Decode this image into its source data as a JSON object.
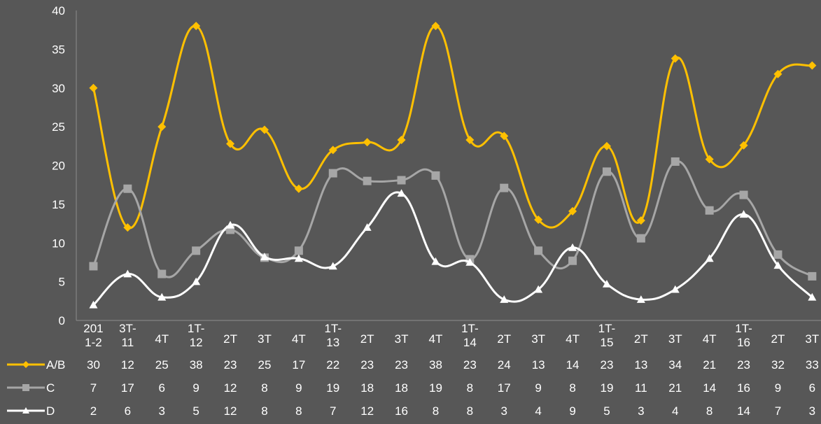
{
  "chart_data": {
    "type": "line",
    "title": "",
    "xlabel": "",
    "ylabel": "",
    "ylim": [
      0,
      40
    ],
    "yticks": [
      0,
      5,
      10,
      15,
      20,
      25,
      30,
      35,
      40
    ],
    "grid": false,
    "legend": "data-table-left",
    "categories": [
      [
        "201",
        "1-2"
      ],
      [
        "3T-",
        "11"
      ],
      [
        "4T"
      ],
      [
        "1T-",
        "12"
      ],
      [
        "2T"
      ],
      [
        "3T"
      ],
      [
        "4T"
      ],
      [
        "1T-",
        "13"
      ],
      [
        "2T"
      ],
      [
        "3T"
      ],
      [
        "4T"
      ],
      [
        "1T-",
        "14"
      ],
      [
        "2T"
      ],
      [
        "3T"
      ],
      [
        "4T"
      ],
      [
        "1T-",
        "15"
      ],
      [
        "2T"
      ],
      [
        "3T"
      ],
      [
        "4T"
      ],
      [
        "1T-",
        "16"
      ],
      [
        "2T"
      ],
      [
        "3T"
      ]
    ],
    "series": [
      {
        "name": "A/B",
        "color": "#FFC000",
        "marker": "diamond",
        "values": [
          30,
          12,
          25,
          38,
          22.8,
          24.6,
          17,
          22,
          23,
          23.3,
          38,
          23.3,
          23.8,
          13,
          14.1,
          22.5,
          12.9,
          33.8,
          20.8,
          22.6,
          31.8,
          32.9
        ],
        "table": [
          "30",
          "12",
          "25",
          "38",
          "23",
          "25",
          "17",
          "22",
          "23",
          "23",
          "38",
          "23",
          "24",
          "13",
          "14",
          "23",
          "13",
          "34",
          "21",
          "23",
          "32",
          "33"
        ]
      },
      {
        "name": "C",
        "color": "#A6A6A6",
        "marker": "square",
        "values": [
          7,
          17,
          6,
          9,
          11.7,
          8.1,
          9,
          19,
          18,
          18.1,
          18.7,
          7.9,
          17.1,
          9,
          7.7,
          19.2,
          10.6,
          20.5,
          14.2,
          16.2,
          8.5,
          5.7
        ],
        "table": [
          "7",
          "17",
          "6",
          "9",
          "12",
          "8",
          "9",
          "19",
          "18",
          "18",
          "19",
          "8",
          "17",
          "9",
          "8",
          "19",
          "11",
          "21",
          "14",
          "16",
          "9",
          "6"
        ]
      },
      {
        "name": "D",
        "color": "#FFFFFF",
        "marker": "triangle",
        "values": [
          2,
          6,
          3,
          5,
          12.3,
          8.2,
          8,
          7,
          12,
          16.4,
          7.6,
          7.5,
          2.7,
          4,
          9.4,
          4.7,
          2.7,
          4,
          8,
          13.7,
          7.1,
          3
        ],
        "table": [
          "2",
          "6",
          "3",
          "5",
          "12",
          "8",
          "8",
          "7",
          "12",
          "16",
          "8",
          "8",
          "3",
          "4",
          "9",
          "5",
          "3",
          "4",
          "8",
          "14",
          "7",
          "3"
        ]
      }
    ]
  }
}
